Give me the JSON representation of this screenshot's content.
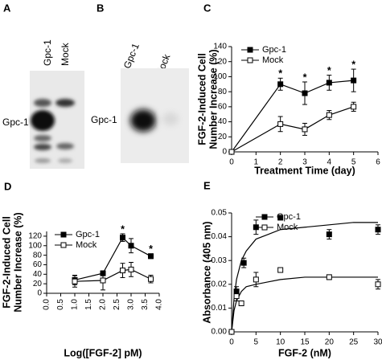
{
  "blots": [
    {
      "panel": "A",
      "lanes": [
        "Gpc-1",
        "Mock"
      ],
      "band_label": "Gpc-1"
    },
    {
      "panel": "B",
      "lanes": [
        "Gpc-1",
        "Mock"
      ],
      "band_label": "Gpc-1"
    }
  ],
  "chart_data": [
    {
      "type": "line",
      "panel": "C",
      "xlabel": "Treatment Time (day)",
      "ylabel": [
        "FGF-2-Induced Cell",
        "Number Increase (%)"
      ],
      "xlim": [
        0,
        6
      ],
      "xticks": [
        0,
        1,
        2,
        3,
        4,
        5,
        6
      ],
      "ylim": [
        0,
        140
      ],
      "yticks": [
        0,
        20,
        40,
        60,
        80,
        100,
        120,
        140
      ],
      "legend": "upper left",
      "series": [
        {
          "name": "Gpc-1",
          "color": "#000000",
          "marker_fill": "#000000",
          "x": [
            0,
            2,
            3,
            4,
            5
          ],
          "values": [
            0,
            90,
            78,
            92,
            95
          ],
          "errors": [
            0,
            8,
            15,
            10,
            15
          ]
        },
        {
          "name": "Mock",
          "color": "#000000",
          "marker_fill": "#ffffff",
          "x": [
            0,
            2,
            3,
            4,
            5
          ],
          "values": [
            0,
            37,
            30,
            49,
            60
          ],
          "errors": [
            0,
            10,
            8,
            6,
            6
          ]
        }
      ],
      "annotations": [
        {
          "x": 2,
          "label": "*"
        },
        {
          "x": 3,
          "label": "*"
        },
        {
          "x": 4,
          "label": "*"
        },
        {
          "x": 5,
          "label": "*"
        }
      ]
    },
    {
      "type": "line",
      "panel": "D",
      "xlabel": "Log([FGF-2] pM)",
      "ylabel": [
        "FGF-2-Induced Cell",
        "Number Increase (%)"
      ],
      "xlim": [
        0,
        4
      ],
      "xticks": [
        {
          "value": 0,
          "label": "0.0"
        },
        0.5,
        {
          "value": 1,
          "label": "1.0"
        },
        1.5,
        {
          "value": 2,
          "label": "2.0"
        },
        2.5,
        {
          "value": 3,
          "label": "3.0"
        },
        3.5,
        {
          "value": 4,
          "label": "4.0"
        }
      ],
      "ylim": [
        0,
        130
      ],
      "yticks": [
        0,
        20,
        40,
        60,
        80,
        100,
        120
      ],
      "legend": "upper left",
      "series": [
        {
          "name": "Gpc-1",
          "color": "#000000",
          "marker_fill": "#000000",
          "x": [
            1.0,
            2.0,
            2.7,
            3.0,
            3.7
          ],
          "values": [
            28,
            42,
            117,
            100,
            78
          ],
          "errors": [
            10,
            5,
            8,
            15,
            5
          ]
        },
        {
          "name": "Mock",
          "color": "#000000",
          "marker_fill": "#ffffff",
          "x": [
            1.0,
            2.0,
            2.7,
            3.0,
            3.7
          ],
          "values": [
            25,
            27,
            48,
            50,
            30
          ],
          "errors": [
            12,
            20,
            15,
            15,
            8
          ]
        }
      ],
      "annotations": [
        {
          "x": 2.7,
          "label": "*"
        },
        {
          "x": 3.7,
          "label": "*"
        }
      ]
    },
    {
      "type": "scatter",
      "panel": "E",
      "xlabel": "FGF-2 (nM)",
      "ylabel": [
        "Absorbance (405 nm)"
      ],
      "xlim": [
        0,
        30
      ],
      "xticks": [
        0,
        5,
        10,
        15,
        20,
        25,
        30
      ],
      "ylim": [
        0,
        0.05
      ],
      "yticks": [
        {
          "value": 0,
          "label": "0.00"
        },
        0.01,
        0.02,
        0.03,
        0.04,
        {
          "value": 0.05,
          "label": "0.05"
        }
      ],
      "legend": "upper left",
      "series": [
        {
          "name": "Gpc-1",
          "color": "#000000",
          "marker_fill": "#000000",
          "x": [
            0,
            1,
            2.5,
            5,
            10,
            20,
            30
          ],
          "values": [
            0,
            0.017,
            0.029,
            0.044,
            0.048,
            0.041,
            0.043
          ],
          "errors": [
            0,
            0.002,
            0.002,
            0.003,
            0,
            0.002,
            0.002
          ],
          "fit": {
            "x": [
              0,
              0.5,
              1,
              2,
              3,
              5,
              7.5,
              10,
              15,
              20,
              25,
              30
            ],
            "values": [
              0,
              0.014,
              0.022,
              0.03,
              0.034,
              0.039,
              0.041,
              0.043,
              0.044,
              0.045,
              0.046,
              0.046
            ]
          }
        },
        {
          "name": "Mock",
          "color": "#000000",
          "marker_fill": "#ffffff",
          "x": [
            0,
            1,
            2,
            5,
            10,
            20,
            30
          ],
          "values": [
            0,
            0.015,
            0.012,
            0.022,
            0.026,
            0.023,
            0.02
          ],
          "errors": [
            0,
            0.002,
            0.001,
            0.003,
            0,
            0.001,
            0.002
          ],
          "fit": {
            "x": [
              0,
              0.5,
              1,
              2,
              3,
              5,
              7.5,
              10,
              15,
              20,
              25,
              30
            ],
            "values": [
              0,
              0.009,
              0.013,
              0.017,
              0.019,
              0.02,
              0.021,
              0.022,
              0.023,
              0.023,
              0.023,
              0.023
            ]
          }
        }
      ]
    }
  ]
}
